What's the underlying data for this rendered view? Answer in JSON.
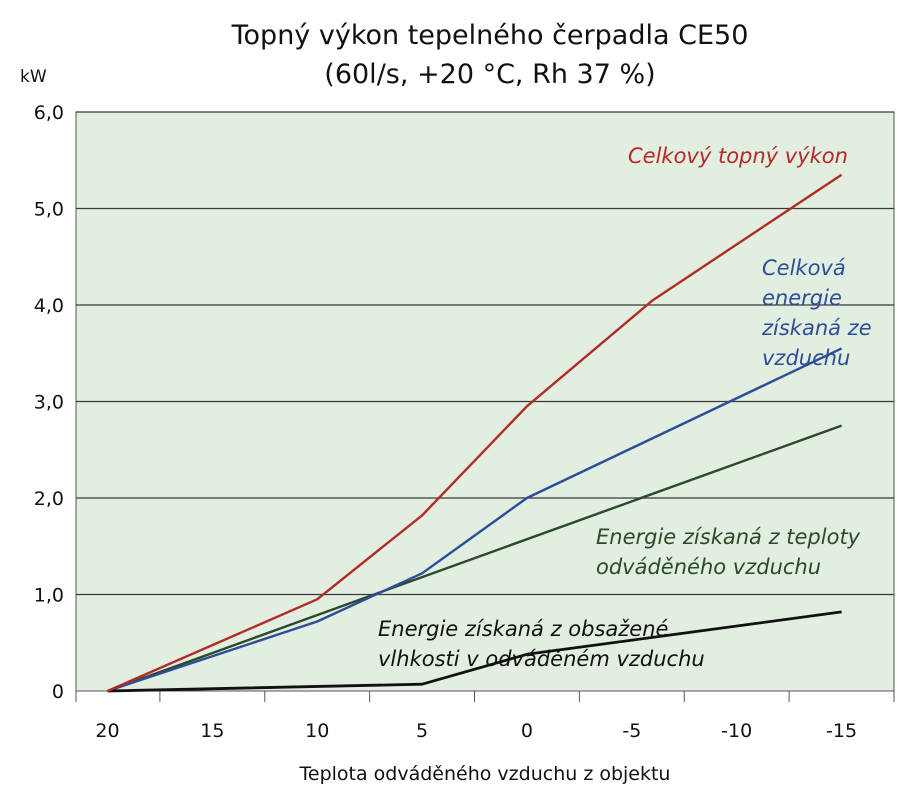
{
  "chart_data": {
    "type": "line",
    "title": "Topný výkon tepelného čerpadla CE50",
    "subtitle": "(60l/s, +20 °C, Rh 37 %)",
    "ylabel": "kW",
    "xlabel": "Teplota odváděného vzduchu z objektu",
    "x_ticks": [
      "20",
      "15",
      "10",
      "5",
      "0",
      "-5",
      "-10",
      "-15"
    ],
    "y_ticks": [
      "0",
      "1,0",
      "2,0",
      "3,0",
      "4,0",
      "5,0",
      "6,0"
    ],
    "xlim": [
      21.5,
      -17.5
    ],
    "ylim": [
      0,
      6
    ],
    "grid": "horizontal",
    "plot_background": "#e2eedf",
    "series": [
      {
        "name": "Celkový topný výkon",
        "color": "#b22a2a",
        "x": [
          20,
          10,
          5,
          0,
          -6,
          -15
        ],
        "y": [
          0,
          0.95,
          1.82,
          2.95,
          4.05,
          5.35
        ]
      },
      {
        "name": "Celková energie získaná ze vzduchu",
        "color": "#2c4d9a",
        "x": [
          20,
          10,
          5,
          0,
          -15
        ],
        "y": [
          0,
          0.72,
          1.22,
          2.0,
          3.55
        ]
      },
      {
        "name": "Energie získaná z teploty odváděného vzduchu",
        "color": "#2a4a2a",
        "x": [
          20,
          5,
          -15
        ],
        "y": [
          0,
          1.18,
          2.75
        ]
      },
      {
        "name": "Energie získaná z obsažené vlhkosti v odváděném vzduchu",
        "color": "#111111",
        "x": [
          20,
          5,
          0,
          -15
        ],
        "y": [
          0,
          0.07,
          0.38,
          0.82
        ]
      }
    ],
    "annotations": [
      {
        "lines": [
          "Celkový topný výkon"
        ],
        "color": "#b22a2a"
      },
      {
        "lines": [
          "Celková",
          "energie",
          "získaná ze",
          "vzduchu"
        ],
        "color": "#2c4d9a"
      },
      {
        "lines": [
          "Energie získaná z teploty",
          "odváděného vzduchu"
        ],
        "color": "#2a4a2a"
      },
      {
        "lines": [
          "Energie získaná z obsažené",
          "vlhkosti v odváděném vzduchu"
        ],
        "color": "#111111"
      }
    ]
  }
}
